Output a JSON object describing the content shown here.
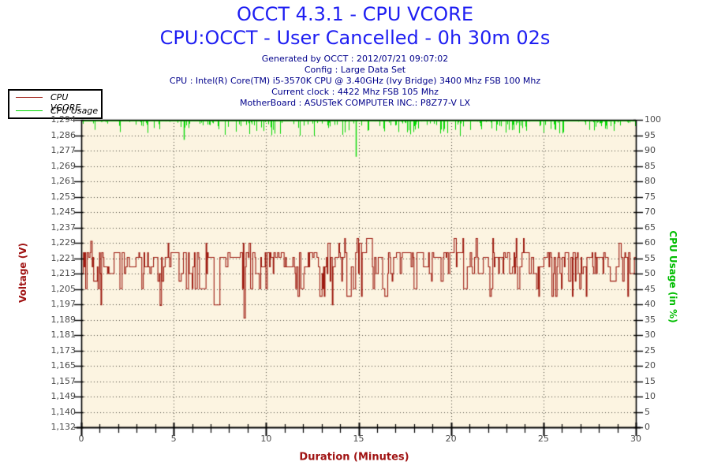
{
  "header": {
    "title": "OCCT 4.3.1 - CPU VCORE",
    "subtitle": "CPU:OCCT - User Cancelled - 0h 30m 02s",
    "info_lines": [
      "Generated by OCCT : 2012/07/21 09:07:02",
      "Config : Large Data Set",
      "CPU : Intel(R) Core(TM) i5-3570K CPU @ 3.40GHz (Ivy Bridge) 3400 Mhz FSB 100 Mhz",
      "Current clock : 4422 Mhz FSB 105 Mhz",
      "MotherBoard : ASUSTeK COMPUTER INC.: P8Z77-V LX"
    ]
  },
  "legend": {
    "items": [
      {
        "label": "CPU VCORE",
        "color": "#9d1a10"
      },
      {
        "label": "CPU Usage",
        "color": "#00d800"
      }
    ]
  },
  "chart_data": {
    "type": "line",
    "title": "OCCT 4.3.1 - CPU VCORE",
    "plot_bg": "#fcf4e1",
    "grid": {
      "dot_color": "#4b463c",
      "horizontal": "every_tick",
      "vertical": "every_5_minutes"
    },
    "x_axis": {
      "label": "Duration (Minutes)",
      "min": 0,
      "max": 30,
      "major_ticks": [
        0,
        5,
        10,
        15,
        20,
        25,
        30
      ],
      "minor_tick_step": 1
    },
    "y_left": {
      "label": "Voltage (V)",
      "min": 1.132,
      "max": 1.294,
      "tick_labels": [
        "1,294",
        "1,286",
        "1,277",
        "1,269",
        "1,261",
        "1,253",
        "1,245",
        "1,237",
        "1,229",
        "1,221",
        "1,213",
        "1,205",
        "1,197",
        "1,189",
        "1,181",
        "1,173",
        "1,165",
        "1,157",
        "1,149",
        "1,140",
        "1,132"
      ],
      "color": "#a01313"
    },
    "y_right": {
      "label": "CPU Usage (in %)",
      "min": 0,
      "max": 100,
      "tick_step": 5,
      "color": "#00bd00"
    },
    "series": [
      {
        "name": "CPU VCORE",
        "axis": "left",
        "color": "#9d1a10",
        "start_value": 1.213,
        "levels": [
          1.2315,
          1.229,
          1.224,
          1.2215,
          1.2165,
          1.213,
          1.209,
          1.205,
          1.201,
          1.1965
        ],
        "weights": [
          0.01,
          0.02,
          0.22,
          0.26,
          0.17,
          0.14,
          0.06,
          0.08,
          0.03,
          0.01
        ],
        "hold_probability": 0.5,
        "samples": 760,
        "notable_points": [
          {
            "x": 0.55,
            "v": 1.23
          },
          {
            "x": 4.3,
            "v": 1.1962
          },
          {
            "x": 8.83,
            "v": 1.1895
          },
          {
            "x": 14.95,
            "v": 1.2315
          }
        ],
        "summary": {
          "typical_band": [
            1.205,
            1.229
          ],
          "mean": 1.22,
          "min": 1.189,
          "max": 1.232
        }
      },
      {
        "name": "CPU Usage",
        "axis": "right",
        "color": "#00d800",
        "baseline": 100,
        "minor_spike_probability": 0.45,
        "minor_spike_depth_max": 4.9,
        "major_dips": [
          {
            "x": 5.53,
            "min": 93.5
          },
          {
            "x": 14.87,
            "min": 88.0
          }
        ],
        "summary": {
          "typical": 100,
          "min": 88
        }
      }
    ],
    "noise_seed": 1337
  }
}
